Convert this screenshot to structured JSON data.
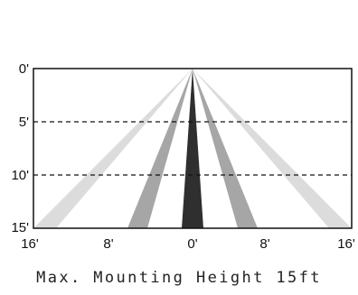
{
  "diagram": {
    "y_labels": [
      "0'",
      "5'",
      "10'",
      "15'"
    ],
    "x_labels": [
      "16'",
      "8'",
      "0'",
      "8'",
      "16'"
    ],
    "caption": "Max. Mounting Height 15ft",
    "colors": {
      "outer_beam": "#dcdcdc",
      "middle_beam": "#a6a6a6",
      "center_beam": "#2f2f2f",
      "frame": "#111111",
      "dashed_line": "#111111"
    }
  }
}
